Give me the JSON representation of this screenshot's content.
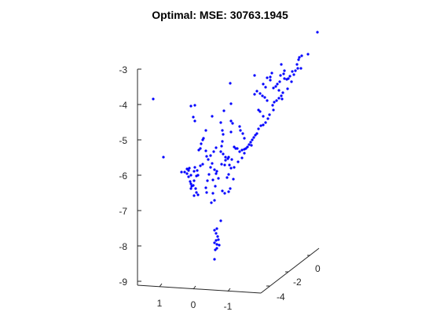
{
  "chart_data": {
    "type": "scatter",
    "title": "Optimal: MSE: 30763.1945",
    "xlabel": "",
    "ylabel": "",
    "zlabel": "",
    "grid": false,
    "view": "3d",
    "colors": {
      "marker": "#0000ff",
      "axes": "#262626",
      "text": "#000000"
    },
    "z_ticks": [
      "-3",
      "-4",
      "-5",
      "-6",
      "-7",
      "-8",
      "-9"
    ],
    "front_ticks": [
      "1",
      "0",
      "-1"
    ],
    "side_ticks": [
      "0",
      "-2",
      "-4"
    ],
    "points": [
      [
        404,
        41
      ],
      [
        392,
        69
      ],
      [
        384,
        71
      ],
      [
        381,
        73
      ],
      [
        380,
        76
      ],
      [
        378,
        82
      ],
      [
        383,
        87
      ],
      [
        379,
        87
      ],
      [
        376,
        90
      ],
      [
        372,
        91
      ],
      [
        374,
        95
      ],
      [
        369,
        97
      ],
      [
        367,
        100
      ],
      [
        365,
        101
      ],
      [
        362,
        100
      ],
      [
        361,
        94
      ],
      [
        357,
        96
      ],
      [
        356,
        104
      ],
      [
        353,
        107
      ],
      [
        351,
        110
      ],
      [
        348,
        112
      ],
      [
        344,
        98
      ],
      [
        346,
        93
      ],
      [
        358,
        82
      ],
      [
        362,
        90
      ],
      [
        371,
        104
      ],
      [
        366,
        113
      ],
      [
        360,
        118
      ],
      [
        358,
        122
      ],
      [
        355,
        125
      ],
      [
        352,
        128
      ],
      [
        349,
        130
      ],
      [
        347,
        134
      ],
      [
        340,
        128
      ],
      [
        337,
        124
      ],
      [
        334,
        122
      ],
      [
        331,
        119
      ],
      [
        327,
        116
      ],
      [
        324,
        120
      ],
      [
        324,
        96
      ],
      [
        335,
        107
      ],
      [
        338,
        111
      ],
      [
        340,
        99
      ],
      [
        344,
        102
      ],
      [
        355,
        115
      ],
      [
        359,
        126
      ],
      [
        348,
        140
      ],
      [
        343,
        146
      ],
      [
        341,
        151
      ],
      [
        338,
        156
      ],
      [
        335,
        159
      ],
      [
        332,
        160
      ],
      [
        329,
        164
      ],
      [
        327,
        170
      ],
      [
        325,
        172
      ],
      [
        323,
        175
      ],
      [
        321,
        178
      ],
      [
        319,
        181
      ],
      [
        317,
        184
      ],
      [
        315,
        187
      ],
      [
        313,
        189
      ],
      [
        311,
        190
      ],
      [
        308,
        191
      ],
      [
        305,
        193
      ],
      [
        302,
        189
      ],
      [
        300,
        189
      ],
      [
        298,
        187
      ],
      [
        294,
        168
      ],
      [
        294,
        154
      ],
      [
        296,
        157
      ],
      [
        294,
        132
      ],
      [
        293,
        106
      ],
      [
        285,
        141
      ],
      [
        281,
        156
      ],
      [
        283,
        166
      ],
      [
        284,
        171
      ],
      [
        283,
        180
      ],
      [
        282,
        186
      ],
      [
        281,
        193
      ],
      [
        284,
        196
      ],
      [
        287,
        200
      ],
      [
        290,
        202
      ],
      [
        292,
        210
      ],
      [
        294,
        214
      ],
      [
        298,
        213
      ],
      [
        303,
        206
      ],
      [
        308,
        201
      ],
      [
        311,
        195
      ],
      [
        306,
        166
      ],
      [
        305,
        161
      ],
      [
        309,
        170
      ],
      [
        311,
        176
      ],
      [
        320,
        185
      ],
      [
        331,
        142
      ],
      [
        335,
        148
      ],
      [
        329,
        140
      ],
      [
        195,
        126
      ],
      [
        208,
        200
      ],
      [
        243,
        135
      ],
      [
        248,
        134
      ],
      [
        246,
        149
      ],
      [
        248,
        154
      ],
      [
        270,
        148
      ],
      [
        262,
        166
      ],
      [
        258,
        178
      ],
      [
        256,
        183
      ],
      [
        255,
        189
      ],
      [
        253,
        191
      ],
      [
        259,
        176
      ],
      [
        262,
        192
      ],
      [
        263,
        199
      ],
      [
        265,
        203
      ],
      [
        268,
        198
      ],
      [
        272,
        193
      ],
      [
        275,
        188
      ],
      [
        270,
        208
      ],
      [
        268,
        213
      ],
      [
        273,
        216
      ],
      [
        276,
        218
      ],
      [
        266,
        222
      ],
      [
        264,
        230
      ],
      [
        262,
        239
      ],
      [
        263,
        245
      ],
      [
        271,
        229
      ],
      [
        275,
        221
      ],
      [
        278,
        227
      ],
      [
        283,
        243
      ],
      [
        286,
        246
      ],
      [
        289,
        226
      ],
      [
        291,
        222
      ],
      [
        286,
        210
      ],
      [
        282,
        209
      ],
      [
        287,
        204
      ],
      [
        291,
        200
      ],
      [
        295,
        203
      ],
      [
        297,
        228
      ],
      [
        293,
        240
      ],
      [
        291,
        244
      ],
      [
        274,
        237
      ],
      [
        271,
        246
      ],
      [
        273,
        255
      ],
      [
        269,
        258
      ],
      [
        258,
        209
      ],
      [
        255,
        211
      ],
      [
        251,
        217
      ],
      [
        247,
        218
      ],
      [
        248,
        213
      ],
      [
        252,
        223
      ],
      [
        247,
        230
      ],
      [
        243,
        234
      ],
      [
        244,
        237
      ],
      [
        249,
        240
      ],
      [
        250,
        245
      ],
      [
        247,
        249
      ],
      [
        252,
        248
      ],
      [
        250,
        224
      ],
      [
        240,
        217
      ],
      [
        241,
        214
      ],
      [
        238,
        215
      ],
      [
        235,
        219
      ],
      [
        231,
        219
      ],
      [
        238,
        221
      ],
      [
        240,
        225
      ],
      [
        242,
        231
      ],
      [
        243,
        240
      ],
      [
        246,
        236
      ],
      [
        243,
        223
      ],
      [
        281,
        281
      ],
      [
        276,
        291
      ],
      [
        273,
        293
      ],
      [
        275,
        297
      ],
      [
        277,
        301
      ],
      [
        278,
        305
      ],
      [
        275,
        306
      ],
      [
        273,
        309
      ],
      [
        276,
        311
      ],
      [
        279,
        312
      ],
      [
        276,
        316
      ],
      [
        274,
        318
      ],
      [
        273,
        330
      ]
    ]
  }
}
